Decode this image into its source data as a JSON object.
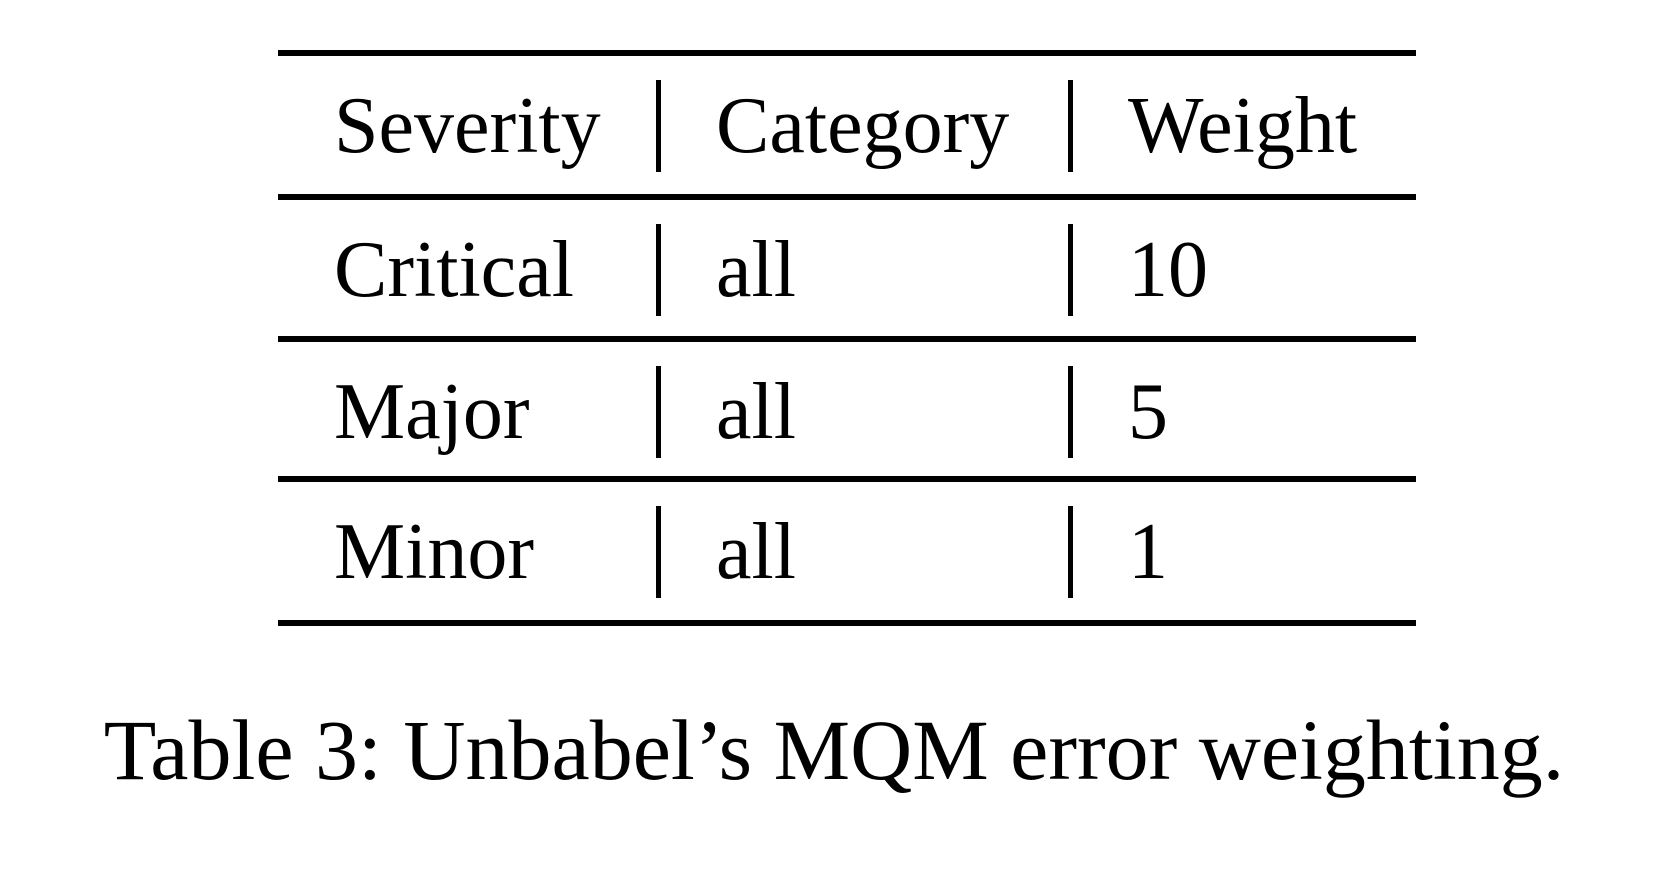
{
  "table": {
    "headers": [
      "Severity",
      "Category",
      "Weight"
    ],
    "rows": [
      [
        "Critical",
        "all",
        "10"
      ],
      [
        "Major",
        "all",
        "5"
      ],
      [
        "Minor",
        "all",
        "1"
      ]
    ]
  },
  "caption": "Table 3: Unbabel’s MQM error weighting."
}
